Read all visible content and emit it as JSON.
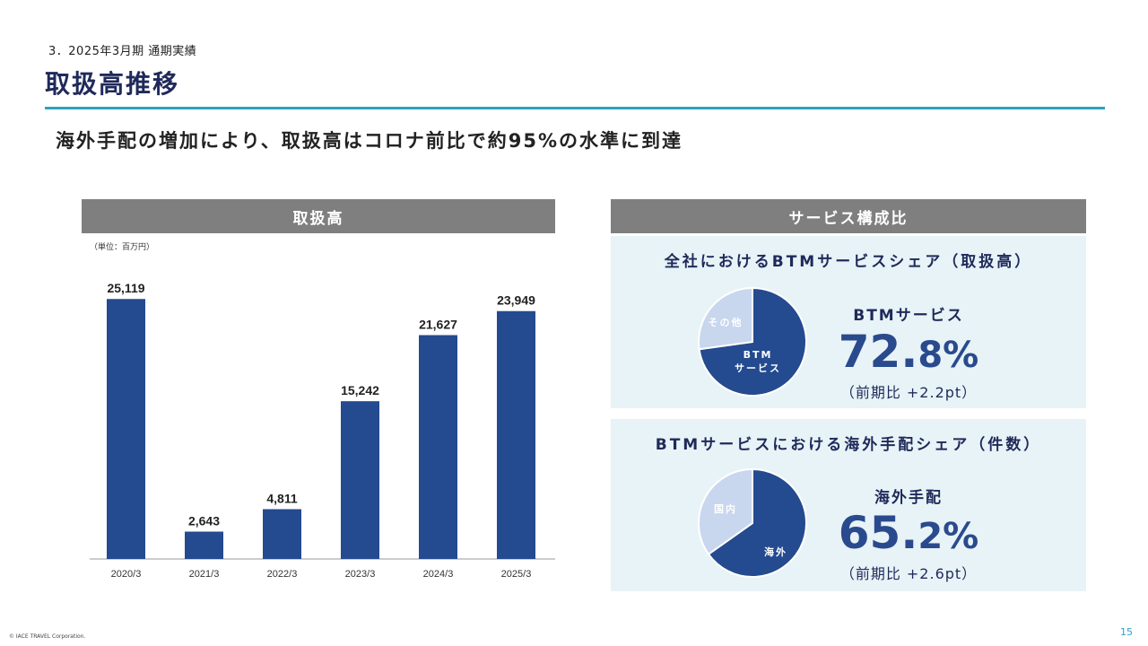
{
  "header": {
    "section": "3．2025年3月期 通期実績",
    "title": "取扱高推移",
    "headline": "海外手配の増加により、取扱高はコロナ前比で約95%の水準に到達"
  },
  "left_panel": {
    "title": "取扱高",
    "unit_note": "（単位：百万円）"
  },
  "right_panel": {
    "title": "サービス構成比",
    "box1": {
      "title": "全社におけるBTMサービスシェア（取扱高）",
      "stat_label": "BTMサービス",
      "stat_int": "72.",
      "stat_dec": "8%",
      "stat_change": "（前期比 +2.2pt）"
    },
    "box2": {
      "title": "BTMサービスにおける海外手配シェア（件数）",
      "stat_label": "海外手配",
      "stat_int": "65.",
      "stat_dec": "2%",
      "stat_change": "（前期比 +2.6pt）"
    }
  },
  "chart_data": [
    {
      "type": "bar",
      "categories": [
        "2020/3",
        "2021/3",
        "2022/3",
        "2023/3",
        "2024/3",
        "2025/3"
      ],
      "values": [
        25119,
        2643,
        4811,
        15242,
        21627,
        23949
      ],
      "value_labels": [
        "25,119",
        "2,643",
        "4,811",
        "15,242",
        "21,627",
        "23,949"
      ],
      "ylim": [
        0,
        28000
      ],
      "grid": false,
      "color": "#244a8f"
    },
    {
      "type": "pie",
      "labels": [
        "BTM\nサービス",
        "その他"
      ],
      "values": [
        72.8,
        27.2
      ],
      "colors": [
        "#244a8f",
        "#c8d6ee"
      ]
    },
    {
      "type": "pie",
      "labels": [
        "海外",
        "国内"
      ],
      "values": [
        65.2,
        34.8
      ],
      "colors": [
        "#244a8f",
        "#c8d6ee"
      ]
    }
  ],
  "footer": {
    "copyright": "© IACE TRAVEL Corporation.",
    "page_number": "15"
  }
}
